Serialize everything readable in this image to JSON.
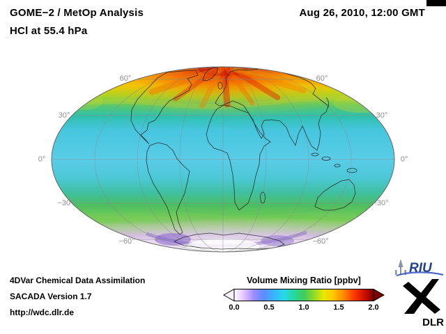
{
  "header": {
    "title_line1": "GOME−2 / MetOp Analysis",
    "title_line2": "HCl at 55.4 hPa",
    "timestamp": "Aug 26, 2010, 12:00 GMT"
  },
  "map": {
    "lat_labels_left": [
      "60°",
      "30°",
      "0°",
      "−30°",
      "−60°"
    ],
    "lat_labels_right": [
      "60°",
      "30°",
      "0°",
      "−30°",
      "−60°"
    ]
  },
  "colorbar": {
    "title": "Volume Mixing Ratio [ppbv]",
    "ticks": [
      "0.0",
      "0.5",
      "1.0",
      "1.5",
      "2.0"
    ],
    "left_arrow_color": "#f8f2fc",
    "right_arrow_color": "#7d0000"
  },
  "footer": {
    "line1": "4DVar Chemical Data Assimilation",
    "line2": "SACADA Version 1.7",
    "line3": "http://wdc.dlr.de"
  },
  "logos": {
    "riu_text": "RIU",
    "dlr_text": "DLR",
    "riu_blue": "#24418e"
  },
  "chart_data": {
    "type": "heatmap",
    "title": "GOME−2 / MetOp Analysis — HCl at 55.4 hPa",
    "timestamp": "Aug 26, 2010, 12:00 GMT",
    "projection": "mollweide",
    "colorbar_label": "Volume Mixing Ratio [ppbv]",
    "value_range": [
      0.0,
      2.0
    ],
    "ticks": [
      0.0,
      0.5,
      1.0,
      1.5,
      2.0
    ],
    "colorbar_colors": [
      "#ffffff",
      "#e0c0ff",
      "#9b8cff",
      "#5a8cff",
      "#38b4ff",
      "#27d8e8",
      "#25d8a0",
      "#3ecb5a",
      "#8eda28",
      "#e8e800",
      "#ffc400",
      "#ff8800",
      "#ff3c00",
      "#d41000",
      "#7d0000"
    ],
    "graticule": {
      "parallels_deg": [
        60,
        30,
        0,
        -30,
        -60
      ],
      "meridian_step_deg": 45
    },
    "zonal_pattern_estimate_ppbv": [
      {
        "band": "75N-90N",
        "value": 1.8
      },
      {
        "band": "60N-75N",
        "value": 1.4
      },
      {
        "band": "45N-60N",
        "value": 1.05
      },
      {
        "band": "30N-45N",
        "value": 0.85
      },
      {
        "band": "30S-30N",
        "value": 0.7
      },
      {
        "band": "30S-55S",
        "value": 0.95
      },
      {
        "band": "55S-65S",
        "value": 0.55
      },
      {
        "band": "65S-90S",
        "value": 0.2
      }
    ]
  }
}
